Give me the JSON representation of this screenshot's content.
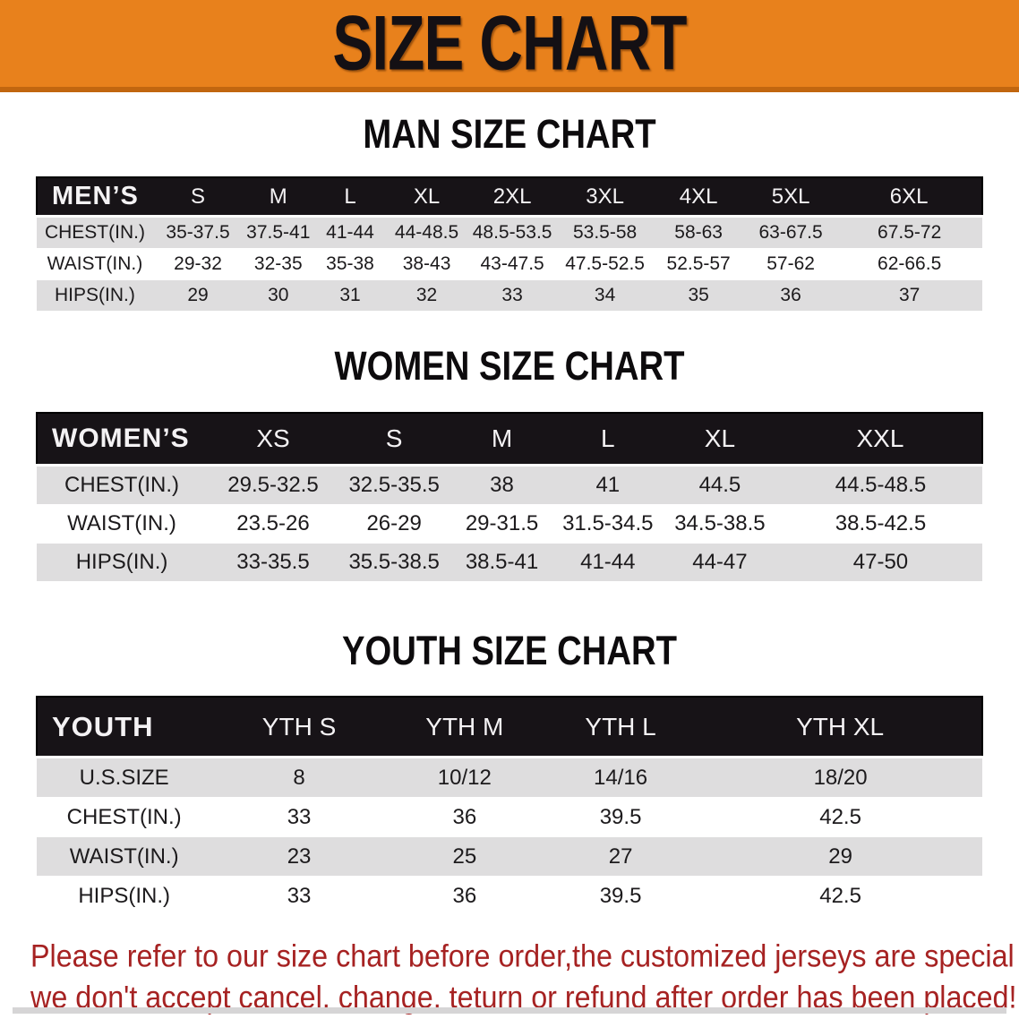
{
  "banner": {
    "title": "SIZE CHART"
  },
  "colors": {
    "banner_orange": "#E8811C",
    "banner_orange_dark": "#C1660F",
    "table_header_black": "#171317",
    "stripe_gray": "#DEDDDE",
    "stripe_white": "#FFFFFF",
    "disclaimer_red": "#A62222"
  },
  "sections": [
    {
      "id": "men",
      "heading": "MAN SIZE CHART",
      "corner_label": "MEN’S",
      "columns": [
        "S",
        "M",
        "L",
        "XL",
        "2XL",
        "3XL",
        "4XL",
        "5XL",
        "6XL"
      ],
      "rows": [
        {
          "label": "CHEST(IN.)",
          "values": [
            "35-37.5",
            "37.5-41",
            "41-44",
            "44-48.5",
            "48.5-53.5",
            "53.5-58",
            "58-63",
            "63-67.5",
            "67.5-72"
          ]
        },
        {
          "label": "WAIST(IN.)",
          "values": [
            "29-32",
            "32-35",
            "35-38",
            "38-43",
            "43-47.5",
            "47.5-52.5",
            "52.5-57",
            "57-62",
            "62-66.5"
          ]
        },
        {
          "label": "HIPS(IN.)",
          "values": [
            "29",
            "30",
            "31",
            "32",
            "33",
            "34",
            "35",
            "36",
            "37"
          ]
        }
      ]
    },
    {
      "id": "women",
      "heading": "WOMEN SIZE CHART",
      "corner_label": "WOMEN’S",
      "columns": [
        "XS",
        "S",
        "M",
        "L",
        "XL",
        "XXL"
      ],
      "rows": [
        {
          "label": "CHEST(IN.)",
          "values": [
            "29.5-32.5",
            "32.5-35.5",
            "38",
            "41",
            "44.5",
            "44.5-48.5"
          ]
        },
        {
          "label": "WAIST(IN.)",
          "values": [
            "23.5-26",
            "26-29",
            "29-31.5",
            "31.5-34.5",
            "34.5-38.5",
            "38.5-42.5"
          ]
        },
        {
          "label": "HIPS(IN.)",
          "values": [
            "33-35.5",
            "35.5-38.5",
            "38.5-41",
            "41-44",
            "44-47",
            "47-50"
          ]
        }
      ]
    },
    {
      "id": "youth",
      "heading": "YOUTH SIZE CHART",
      "corner_label": "YOUTH",
      "columns": [
        "YTH S",
        "YTH M",
        "YTH L",
        "YTH XL"
      ],
      "rows": [
        {
          "label": "U.S.SIZE",
          "values": [
            "8",
            "10/12",
            "14/16",
            "18/20"
          ]
        },
        {
          "label": "CHEST(IN.)",
          "values": [
            "33",
            "36",
            "39.5",
            "42.5"
          ]
        },
        {
          "label": "WAIST(IN.)",
          "values": [
            "23",
            "25",
            "27",
            "29"
          ]
        },
        {
          "label": "HIPS(IN.)",
          "values": [
            "33",
            "36",
            "39.5",
            "42.5"
          ]
        }
      ]
    }
  ],
  "disclaimer": {
    "line1": "Please refer to our size chart before order,the customized jerseys are special products,",
    "line2": "we don't accept cancel, change, teturn or refund after order has been placed!"
  }
}
